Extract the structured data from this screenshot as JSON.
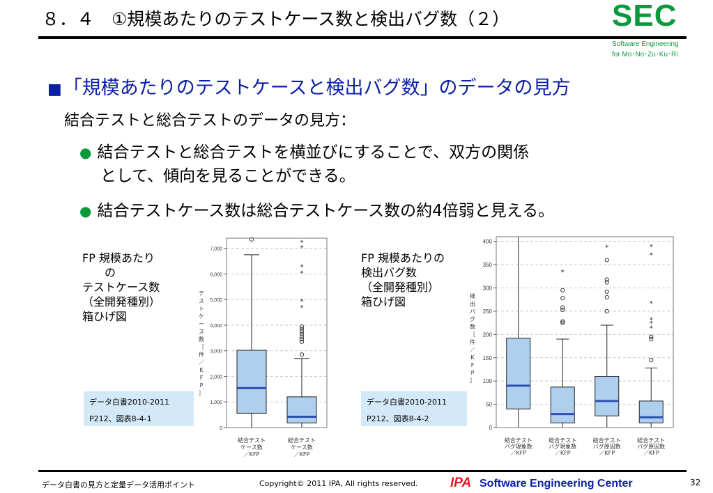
{
  "slide": {
    "title": "８．４　①規模あたりのテストケース数と検出バグ数（２）",
    "heading_marker": "■",
    "heading": "「規模あたりのテストケースと検出バグ数」のデータの見方",
    "subheading": "結合テストと総合テストのデータの見方：",
    "bullet_marker": "●",
    "bullets": [
      "結合テストと総合テストを横並びにすることで、双方の関係",
      "として、傾向を見ることができる。",
      "結合テストケース数は総合テストケース数の約4倍弱と見える。"
    ]
  },
  "logo": {
    "text": "SEC",
    "sub1": "Software Engineering",
    "sub2": "for Mo･No･Zu･Ku･Ri",
    "color": "#0a9a3c"
  },
  "figure1": {
    "caption": "FP 規模あたり\n　　の\nテストケース数\n（全開発種別）\n箱ひげ図",
    "source_line1": "データ白書2010-2011",
    "source_line2": "P212、図表8-4-1"
  },
  "figure2": {
    "caption": "FP 規模あたりの\n検出バグ数\n（全開発種別）\n箱ひげ図",
    "source_line1": "データ白書2010-2011",
    "source_line2": "P212、図表8-4-2"
  },
  "footer": {
    "left": "データ白書の見方と定量データ活用ポイント",
    "copyright": "Copyright© 2011 IPA, All rights reserved.",
    "ipa": "IPA",
    "sec": "Software Engineering Center",
    "page": "32"
  },
  "chart_data": [
    {
      "type": "boxplot",
      "ylabel": "テストケース数［件／KFP］",
      "ylim": [
        0,
        7400
      ],
      "yticks": [
        0,
        1000,
        2000,
        3000,
        4000,
        5000,
        6000,
        7000
      ],
      "ytick_labels": [
        "0",
        "1,000",
        "2,000",
        "3,000",
        "4,000",
        "5,000",
        "6,000",
        "7,000"
      ],
      "grid": true,
      "categories": [
        "結合テスト\nケース数\n／KFP",
        "総合テスト\nケース数\n／KFP"
      ],
      "boxes": [
        {
          "whisker_low": 0,
          "q1": 560,
          "median": 1540,
          "q3": 3020,
          "whisker_high": 6750,
          "outliers": [
            7350
          ],
          "extremes": []
        },
        {
          "whisker_low": 0,
          "q1": 180,
          "median": 420,
          "q3": 1200,
          "whisker_high": 2700,
          "outliers": [
            2850,
            3350,
            3450,
            3550,
            3650,
            3750,
            3850,
            3950
          ],
          "extremes": [
            4700,
            4950,
            6050,
            6300,
            7050,
            7250
          ]
        }
      ],
      "box_color": "#aed0ee",
      "median_color": "#2f4fb0"
    },
    {
      "type": "boxplot",
      "ylabel": "検出バグ数［件／KFP］",
      "ylim": [
        0,
        410
      ],
      "yticks": [
        0,
        50,
        100,
        150,
        200,
        250,
        300,
        350,
        400
      ],
      "ytick_labels": [
        "0",
        "50",
        "100",
        "150",
        "200",
        "250",
        "300",
        "350",
        "400"
      ],
      "grid": true,
      "categories": [
        "結合テスト\nバグ現象数\n／KFP",
        "総合テスト\nバグ現象数\n／KFP",
        "結合テスト\nバグ原因数\n／KFP",
        "総合テスト\nバグ原因数\n／KFP"
      ],
      "boxes": [
        {
          "whisker_low": 0,
          "q1": 40,
          "median": 90,
          "q3": 192,
          "whisker_high": 410,
          "outliers": [],
          "extremes": []
        },
        {
          "whisker_low": 0,
          "q1": 10,
          "median": 29,
          "q3": 87,
          "whisker_high": 190,
          "outliers": [
            225,
            228,
            253,
            258,
            278,
            295
          ],
          "extremes": [
            335
          ]
        },
        {
          "whisker_low": 0,
          "q1": 25,
          "median": 57,
          "q3": 110,
          "whisker_high": 220,
          "outliers": [
            250,
            280,
            292,
            312,
            318,
            360
          ],
          "extremes": [
            388
          ]
        },
        {
          "whisker_low": 0,
          "q1": 10,
          "median": 22,
          "q3": 57,
          "whisker_high": 128,
          "outliers": [
            145,
            190,
            195
          ],
          "extremes": [
            215,
            225,
            233,
            268,
            372,
            390
          ]
        }
      ],
      "box_color": "#aed0ee",
      "median_color": "#2f4fb0"
    }
  ]
}
